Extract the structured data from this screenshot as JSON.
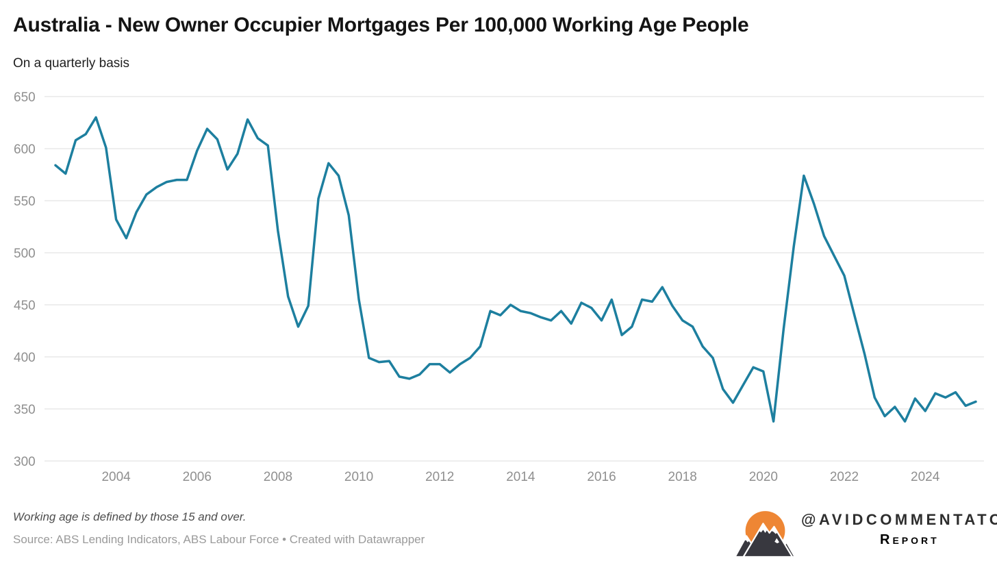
{
  "header": {
    "title": "Australia - New Owner Occupier Mortgages Per 100,000 Working Age People",
    "subtitle": "On a quarterly basis"
  },
  "footer": {
    "note": "Working age is defined by those 15 and over.",
    "source": "Source: ABS Lending Indicators, ABS Labour Force • Created with Datawrapper",
    "logo": {
      "handle": "@AVIDCOMMENTATOR",
      "wordmark": "Report",
      "icon": "mountain-sun-icon"
    }
  },
  "colors": {
    "line": "#1d7f9f",
    "grid": "#dedede",
    "tick_label": "#8f8f8f",
    "logo_orange": "#ee8634",
    "logo_dark": "#38383f"
  },
  "chart_data": {
    "type": "line",
    "title": "Australia - New Owner Occupier Mortgages Per 100,000 Working Age People",
    "subtitle": "On a quarterly basis",
    "frequency": "quarterly",
    "legend": "none",
    "grid": "horizontal-only",
    "ylim": [
      300,
      650
    ],
    "y_ticks": [
      650,
      600,
      550,
      500,
      450,
      400,
      350,
      300
    ],
    "x_tick_labels": [
      2004,
      2006,
      2008,
      2010,
      2012,
      2014,
      2016,
      2018,
      2020,
      2022,
      2024
    ],
    "x_range_years": [
      2002.5,
      2025.25
    ],
    "categories": [
      "2002-Q3",
      "2002-Q4",
      "2003-Q1",
      "2003-Q2",
      "2003-Q3",
      "2003-Q4",
      "2004-Q1",
      "2004-Q2",
      "2004-Q3",
      "2004-Q4",
      "2005-Q1",
      "2005-Q2",
      "2005-Q3",
      "2005-Q4",
      "2006-Q1",
      "2006-Q2",
      "2006-Q3",
      "2006-Q4",
      "2007-Q1",
      "2007-Q2",
      "2007-Q3",
      "2007-Q4",
      "2008-Q1",
      "2008-Q2",
      "2008-Q3",
      "2008-Q4",
      "2009-Q1",
      "2009-Q2",
      "2009-Q3",
      "2009-Q4",
      "2010-Q1",
      "2010-Q2",
      "2010-Q3",
      "2010-Q4",
      "2011-Q1",
      "2011-Q2",
      "2011-Q3",
      "2011-Q4",
      "2012-Q1",
      "2012-Q2",
      "2012-Q3",
      "2012-Q4",
      "2013-Q1",
      "2013-Q2",
      "2013-Q3",
      "2013-Q4",
      "2014-Q1",
      "2014-Q2",
      "2014-Q3",
      "2014-Q4",
      "2015-Q1",
      "2015-Q2",
      "2015-Q3",
      "2015-Q4",
      "2016-Q1",
      "2016-Q2",
      "2016-Q3",
      "2016-Q4",
      "2017-Q1",
      "2017-Q2",
      "2017-Q3",
      "2017-Q4",
      "2018-Q1",
      "2018-Q2",
      "2018-Q3",
      "2018-Q4",
      "2019-Q1",
      "2019-Q2",
      "2019-Q3",
      "2019-Q4",
      "2020-Q1",
      "2020-Q2",
      "2020-Q3",
      "2020-Q4",
      "2021-Q1",
      "2021-Q2",
      "2021-Q3",
      "2021-Q4",
      "2022-Q1",
      "2022-Q2",
      "2022-Q3",
      "2022-Q4",
      "2023-Q1",
      "2023-Q2",
      "2023-Q3",
      "2023-Q4",
      "2024-Q1",
      "2024-Q2",
      "2024-Q3",
      "2024-Q4",
      "2025-Q1",
      "2025-Q2"
    ],
    "values": [
      584,
      576,
      608,
      614,
      630,
      601,
      532,
      514,
      539,
      556,
      563,
      568,
      570,
      570,
      598,
      619,
      609,
      580,
      595,
      628,
      610,
      603,
      521,
      458,
      429,
      449,
      552,
      586,
      574,
      536,
      455,
      399,
      395,
      396,
      381,
      379,
      383,
      393,
      393,
      385,
      393,
      399,
      410,
      444,
      440,
      450,
      444,
      442,
      438,
      435,
      444,
      432,
      452,
      447,
      435,
      455,
      421,
      429,
      455,
      453,
      467,
      449,
      435,
      429,
      410,
      399,
      369,
      356,
      373,
      390,
      386,
      338,
      427,
      506,
      574,
      547,
      516,
      497,
      478,
      440,
      403,
      361,
      343,
      352,
      338,
      360,
      348,
      365,
      361,
      366,
      353,
      357
    ]
  }
}
